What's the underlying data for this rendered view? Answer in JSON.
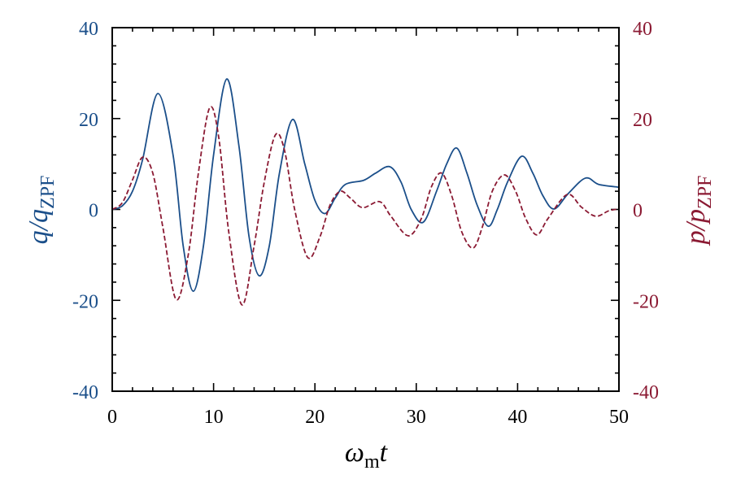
{
  "colors": {
    "q_series": "#1b4f8a",
    "p_series": "#8b1a33",
    "axis": "#000000",
    "x_tick_label": "#000000"
  },
  "axes": {
    "x": {
      "label_main": "ω",
      "label_sub": "m",
      "label_tail": "t",
      "range": [
        0,
        50
      ],
      "ticks": [
        0,
        10,
        20,
        30,
        40,
        50
      ],
      "tick_labels": [
        "0",
        "10",
        "20",
        "30",
        "40",
        "50"
      ],
      "minor_step": 2
    },
    "y_left": {
      "label_main": "q/q",
      "label_sub": "ZPF",
      "range": [
        -40,
        40
      ],
      "ticks": [
        40,
        20,
        0,
        -20,
        -40
      ],
      "tick_labels": [
        "40",
        "20",
        "0",
        "-20",
        "-40"
      ],
      "minor_step": 4
    },
    "y_right": {
      "label_main": "p/p",
      "label_sub": "ZPF",
      "range": [
        -40,
        40
      ],
      "ticks": [
        40,
        20,
        0,
        -20,
        -40
      ],
      "tick_labels": [
        "40",
        "20",
        "0",
        "-20",
        "-40"
      ],
      "minor_step": 4
    }
  },
  "chart_data": {
    "type": "line",
    "title": "",
    "xlabel": "ω_m t",
    "ylabel": "q/q_ZPF",
    "ylabel_right": "p/p_ZPF",
    "xlim": [
      0,
      50
    ],
    "ylim": [
      -40,
      40
    ],
    "ylim_right": [
      -40,
      40
    ],
    "grid": false,
    "legend": "none",
    "series": [
      {
        "name": "q/q_ZPF",
        "axis": "left",
        "style": "solid",
        "color": "#1b4f8a",
        "x": [
          0,
          1,
          2,
          3,
          4.5,
          6,
          7,
          8,
          9,
          10,
          11.3,
          12.5,
          13.5,
          14.5,
          15.5,
          16.5,
          17.8,
          19,
          20,
          21,
          22,
          23,
          24.8,
          26,
          27.4,
          28.5,
          29.5,
          30.7,
          32,
          33,
          34,
          35,
          36,
          37.1,
          38,
          39,
          40.4,
          41.5,
          42.5,
          43.6,
          45,
          46.7,
          48,
          50
        ],
        "y": [
          0,
          0.8,
          4,
          11,
          25.5,
          12,
          -8,
          -18,
          -8,
          12,
          28.7,
          14,
          -6,
          -14.6,
          -8,
          8,
          19.8,
          10,
          2,
          -0.9,
          2.5,
          5.5,
          6.4,
          8,
          9.4,
          6,
          0,
          -2.8,
          4,
          10,
          13.5,
          8,
          1,
          -3.7,
          0,
          6,
          11.7,
          8,
          3,
          0.1,
          3.5,
          6.9,
          5.5,
          4.9
        ]
      },
      {
        "name": "p/p_ZPF",
        "axis": "right",
        "style": "dashed",
        "color": "#8b1a33",
        "x": [
          0,
          1,
          2,
          3,
          4,
          5,
          6.3,
          7.5,
          8.5,
          9.6,
          10.5,
          11.5,
          12.8,
          14,
          15,
          16.1,
          17,
          18,
          19.3,
          20.5,
          21.5,
          22.5,
          23.5,
          24.7,
          26.4,
          27.5,
          29.2,
          30.5,
          31.5,
          32.5,
          33.5,
          34.5,
          35.6,
          36.5,
          37.5,
          38.7,
          39.8,
          40.8,
          41.9,
          43,
          44.9,
          46.3,
          47.7,
          49,
          50
        ],
        "y": [
          0,
          1.5,
          6.5,
          11.5,
          8,
          -4,
          -19.8,
          -10,
          8,
          22.3,
          16,
          -5,
          -21,
          -8,
          6,
          16.4,
          13,
          0,
          -10.6,
          -6,
          1,
          4,
          2.5,
          0.4,
          1.7,
          -1.5,
          -5.8,
          -2,
          5,
          8,
          3,
          -5,
          -8.5,
          -4,
          4,
          7.6,
          4,
          -2,
          -5.6,
          -2,
          3.3,
          0.5,
          -1.5,
          -0.3,
          0.1
        ]
      }
    ]
  }
}
